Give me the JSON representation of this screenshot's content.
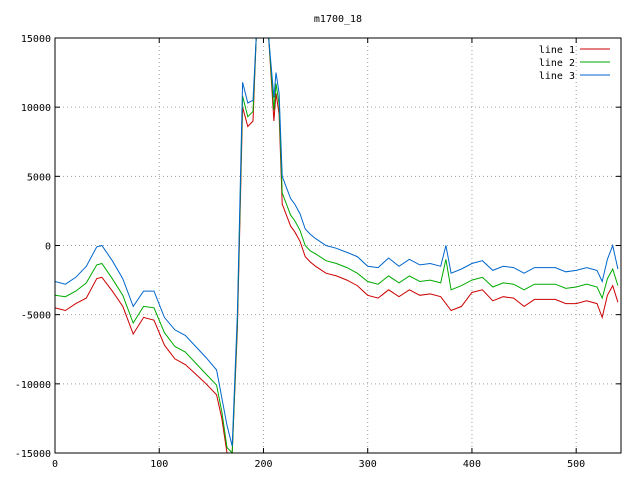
{
  "chart_data": {
    "type": "line",
    "title": "m1700_18",
    "xlabel": "",
    "ylabel": "",
    "xlim": [
      0,
      543
    ],
    "ylim": [
      -15000,
      15000
    ],
    "x_ticks": [
      "0",
      "100",
      "200",
      "300",
      "400",
      "500"
    ],
    "y_ticks": [
      "-15000",
      "-10000",
      "-5000",
      "0",
      "5000",
      "10000",
      "15000"
    ],
    "grid": true,
    "legend": "top-right",
    "series": [
      {
        "name": "line 1",
        "color": "#cc0000",
        "x": [
          0,
          10,
          20,
          30,
          40,
          45,
          55,
          65,
          75,
          85,
          95,
          105,
          115,
          125,
          135,
          145,
          155,
          160,
          165,
          170,
          175,
          180,
          185,
          190,
          193,
          197,
          200,
          205,
          210,
          212,
          215,
          218,
          222,
          226,
          230,
          235,
          240,
          245,
          250,
          260,
          270,
          280,
          290,
          300,
          310,
          320,
          330,
          340,
          350,
          360,
          370,
          380,
          390,
          400,
          410,
          420,
          430,
          440,
          450,
          460,
          470,
          480,
          490,
          500,
          510,
          520,
          525,
          530,
          535,
          540
        ],
        "values": [
          -4500,
          -4700,
          -4200,
          -3800,
          -2400,
          -2300,
          -3300,
          -4400,
          -6400,
          -5200,
          -5400,
          -7200,
          -8200,
          -8600,
          -9300,
          -10000,
          -10800,
          -12500,
          -15000,
          -15000,
          -6000,
          10000,
          8600,
          9000,
          15000,
          15000,
          15000,
          15000,
          9000,
          11000,
          9500,
          3000,
          2200,
          1400,
          1000,
          300,
          -800,
          -1200,
          -1500,
          -2000,
          -2200,
          -2500,
          -2900,
          -3600,
          -3800,
          -3200,
          -3700,
          -3200,
          -3600,
          -3500,
          -3700,
          -4700,
          -4400,
          -3400,
          -3200,
          -4000,
          -3700,
          -3800,
          -4400,
          -3900,
          -3900,
          -3900,
          -4200,
          -4200,
          -4000,
          -4200,
          -5200,
          -3600,
          -2900,
          -4100
        ]
      },
      {
        "name": "line 2",
        "color": "#00aa00",
        "x": [
          0,
          10,
          20,
          30,
          40,
          45,
          55,
          65,
          75,
          85,
          95,
          105,
          115,
          125,
          135,
          145,
          155,
          160,
          165,
          170,
          175,
          180,
          185,
          190,
          193,
          197,
          200,
          205,
          210,
          212,
          215,
          218,
          222,
          226,
          230,
          235,
          240,
          245,
          250,
          260,
          270,
          280,
          290,
          300,
          310,
          320,
          330,
          340,
          350,
          360,
          370,
          375,
          380,
          390,
          400,
          410,
          420,
          430,
          440,
          450,
          460,
          470,
          480,
          490,
          500,
          510,
          520,
          525,
          530,
          535,
          540
        ],
        "values": [
          -3600,
          -3700,
          -3300,
          -2700,
          -1400,
          -1300,
          -2400,
          -3600,
          -5600,
          -4400,
          -4500,
          -6300,
          -7300,
          -7700,
          -8500,
          -9300,
          -10100,
          -12000,
          -14600,
          -15000,
          -5500,
          10800,
          9300,
          9700,
          15000,
          15000,
          15000,
          15000,
          9800,
          11700,
          10200,
          3800,
          3000,
          2200,
          1800,
          1100,
          0,
          -400,
          -600,
          -1100,
          -1300,
          -1600,
          -2000,
          -2600,
          -2800,
          -2200,
          -2700,
          -2200,
          -2600,
          -2500,
          -2700,
          -1000,
          -3200,
          -2900,
          -2500,
          -2300,
          -3000,
          -2700,
          -2800,
          -3200,
          -2800,
          -2800,
          -2800,
          -3100,
          -3000,
          -2800,
          -3000,
          -3800,
          -2400,
          -1700,
          -2900
        ]
      },
      {
        "name": "line 3",
        "color": "#0066cc",
        "x": [
          0,
          10,
          20,
          30,
          40,
          45,
          55,
          65,
          75,
          85,
          95,
          105,
          115,
          125,
          135,
          145,
          155,
          160,
          165,
          170,
          175,
          180,
          185,
          190,
          193,
          197,
          200,
          205,
          210,
          212,
          215,
          218,
          222,
          226,
          230,
          235,
          240,
          245,
          250,
          260,
          270,
          280,
          290,
          300,
          310,
          320,
          330,
          340,
          350,
          360,
          370,
          375,
          380,
          390,
          400,
          410,
          420,
          430,
          440,
          450,
          460,
          470,
          480,
          490,
          500,
          510,
          520,
          525,
          530,
          535,
          540
        ],
        "values": [
          -2600,
          -2800,
          -2300,
          -1500,
          -100,
          0,
          -1100,
          -2400,
          -4400,
          -3300,
          -3300,
          -5200,
          -6100,
          -6500,
          -7300,
          -8100,
          -9000,
          -11000,
          -13000,
          -14500,
          -4900,
          11800,
          10300,
          10500,
          15000,
          15000,
          15000,
          15000,
          10700,
          12500,
          11000,
          5000,
          4200,
          3400,
          3000,
          2300,
          1200,
          800,
          500,
          0,
          -200,
          -500,
          -800,
          -1500,
          -1600,
          -900,
          -1500,
          -1000,
          -1400,
          -1300,
          -1500,
          0,
          -2000,
          -1700,
          -1300,
          -1100,
          -1800,
          -1500,
          -1600,
          -2000,
          -1600,
          -1600,
          -1600,
          -1900,
          -1800,
          -1600,
          -1800,
          -2600,
          -1000,
          0,
          -1700
        ]
      }
    ]
  }
}
